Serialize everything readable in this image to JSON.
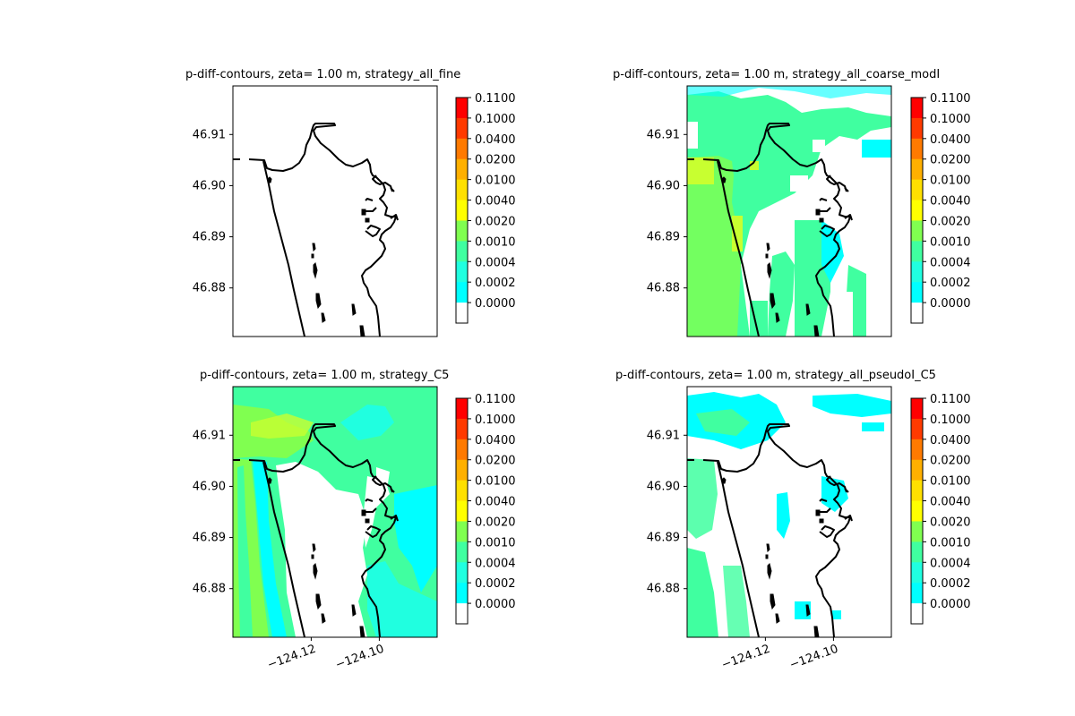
{
  "chart_data": [
    {
      "type": "heatmap",
      "title": "p-diff-contours, zeta= 1.00 m, strategy_all_fine",
      "xlim": [
        -124.143,
        -124.083
      ],
      "ylim": [
        46.8705,
        46.9195
      ],
      "yticks": [
        "46.91",
        "46.90",
        "46.89",
        "46.88"
      ],
      "ytick_values": [
        46.91,
        46.9,
        46.89,
        46.88
      ],
      "xticks": [],
      "coverage": "none"
    },
    {
      "type": "heatmap",
      "title": "p-diff-contours, zeta= 1.00 m, strategy_all_coarse_modI",
      "xlim": [
        -124.143,
        -124.083
      ],
      "ylim": [
        46.8705,
        46.9195
      ],
      "yticks": [
        "46.91",
        "46.90",
        "46.89",
        "46.88"
      ],
      "ytick_values": [
        46.91,
        46.9,
        46.89,
        46.88
      ],
      "xticks": [],
      "coverage": "patchy, mostly 0.0002-0.0020 with a 0.0040 band near the west coast"
    },
    {
      "type": "heatmap",
      "title": "p-diff-contours, zeta= 1.00 m, strategy_C5",
      "xlim": [
        -124.143,
        -124.083
      ],
      "ylim": [
        46.8705,
        46.9195
      ],
      "yticks": [
        "46.91",
        "46.90",
        "46.89",
        "46.88"
      ],
      "ytick_values": [
        46.91,
        46.9,
        46.89,
        46.88
      ],
      "xticks": [
        "−124.12",
        "−124.10"
      ],
      "xtick_values": [
        -124.12,
        -124.1
      ],
      "coverage": "dense offshore, 0.0002-0.0020; interior bay mostly below 0.0002"
    },
    {
      "type": "heatmap",
      "title": "p-diff-contours, zeta= 1.00 m, strategy_all_pseudoI_C5",
      "xlim": [
        -124.143,
        -124.083
      ],
      "ylim": [
        46.8705,
        46.9195
      ],
      "yticks": [
        "46.91",
        "46.90",
        "46.89",
        "46.88"
      ],
      "ytick_values": [
        46.91,
        46.9,
        46.89,
        46.88
      ],
      "xticks": [
        "−124.12",
        "−124.10"
      ],
      "xtick_values": [
        -124.12,
        -124.1
      ],
      "coverage": "sparse, mostly 0.0002-0.0010"
    }
  ],
  "colorbar": {
    "levels": [
      "0.1100",
      "0.1000",
      "0.0400",
      "0.0200",
      "0.0100",
      "0.0040",
      "0.0020",
      "0.0010",
      "0.0004",
      "0.0002",
      "0.0000"
    ],
    "band_colors": [
      "#ff0000",
      "#ff3a00",
      "#ff7a00",
      "#ffb000",
      "#ffe000",
      "#ffff00",
      "#80ff50",
      "#40ffa0",
      "#20ffe0",
      "#00ffff",
      "#ffffff"
    ]
  },
  "colors": {
    "c0002": "#00ffff",
    "c0004": "#20ffe0",
    "c0010": "#40ffa0",
    "c0020": "#80ff50",
    "c0040": "#c8ff30",
    "coast": "#000000"
  }
}
